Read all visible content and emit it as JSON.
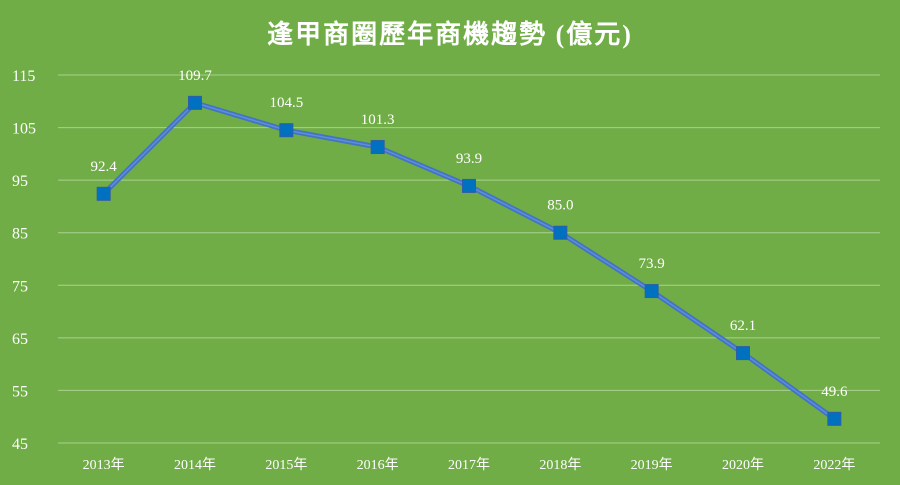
{
  "chart_data": {
    "type": "line",
    "title": "逢甲商圈歷年商機趨勢 (億元)",
    "categories": [
      "2013年",
      "2014年",
      "2015年",
      "2016年",
      "2017年",
      "2018年",
      "2019年",
      "2020年",
      "2022年"
    ],
    "series": [
      {
        "values": [
          92.4,
          109.7,
          104.5,
          101.3,
          93.9,
          85.0,
          73.9,
          62.1,
          49.6
        ]
      }
    ],
    "data_labels": [
      "92.4",
      "109.7",
      "104.5",
      "101.3",
      "93.9",
      "85.0",
      "73.9",
      "62.1",
      "49.6"
    ],
    "y_ticks": [
      45,
      55,
      65,
      75,
      85,
      95,
      105,
      115
    ],
    "ylim": [
      45,
      115
    ],
    "grid": true,
    "legend": "none",
    "colors": {
      "background": "#70ad47",
      "line": "#4472c4",
      "marker": "#0070c0",
      "grid": "#a9d18e",
      "text": "#ffffff"
    }
  }
}
